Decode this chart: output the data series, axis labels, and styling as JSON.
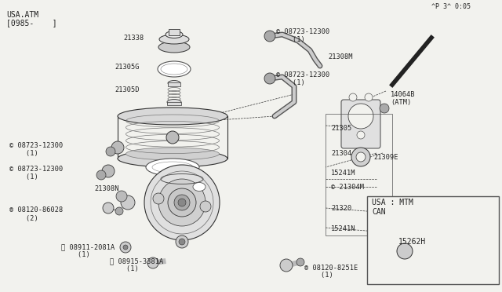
{
  "bg_color": "#f2f2ee",
  "title_lines": [
    "USA.ATM",
    "[0985-    ]"
  ],
  "footer_text": "^P 3^ 0:05",
  "inset_title1": "USA : MTM",
  "inset_title2": "CAN",
  "inset_label": "15262H",
  "col": "#222222"
}
